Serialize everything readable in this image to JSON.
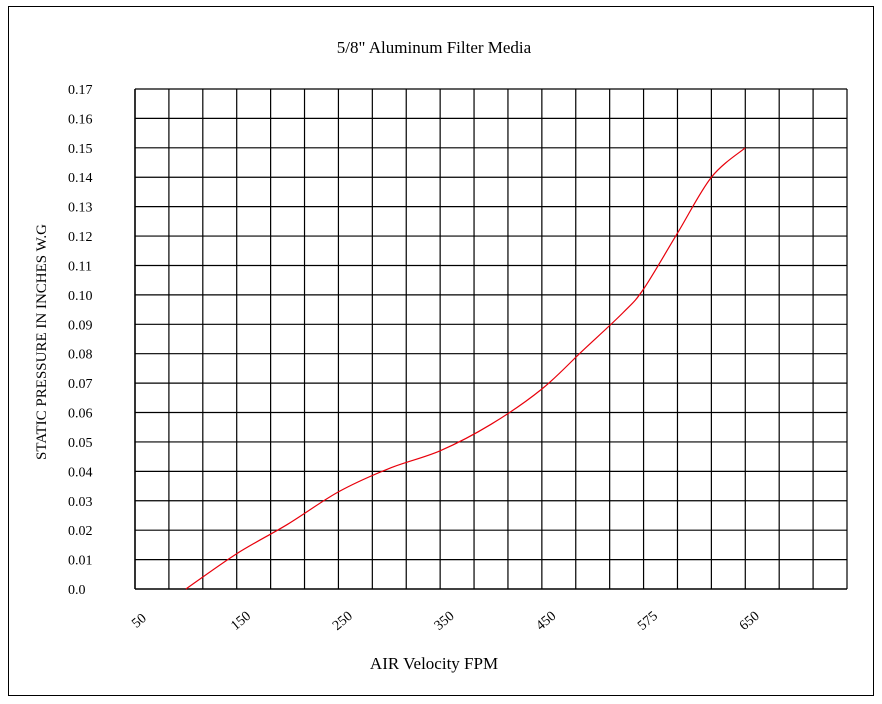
{
  "chart_data": {
    "type": "line",
    "title": "5/8\" Aluminum Filter Media",
    "xlabel": "AIR Velocity FPM",
    "ylabel": "STATIC PRESSURE IN INCHES W.G",
    "x_tick_labels": [
      "50",
      "150",
      "250",
      "350",
      "450",
      "575",
      "650"
    ],
    "y_tick_labels": [
      "0.0",
      "0.01",
      "0.02",
      "0.03",
      "0.04",
      "0.05",
      "0.06",
      "0.07",
      "0.08",
      "0.09",
      "0.10",
      "0.11",
      "0.12",
      "0.13",
      "0.14",
      "0.15",
      "0.16",
      "0.17"
    ],
    "ylim": [
      0,
      0.17
    ],
    "grid": true,
    "line_color": "#e8000b",
    "series": [
      {
        "x": [
          100,
          150,
          200,
          250,
          300,
          350,
          400,
          450,
          500,
          550,
          575,
          600,
          625,
          650
        ],
        "y": [
          0.0,
          0.012,
          0.022,
          0.033,
          0.041,
          0.047,
          0.056,
          0.068,
          0.081,
          0.094,
          0.102,
          0.121,
          0.14,
          0.15
        ]
      }
    ]
  }
}
